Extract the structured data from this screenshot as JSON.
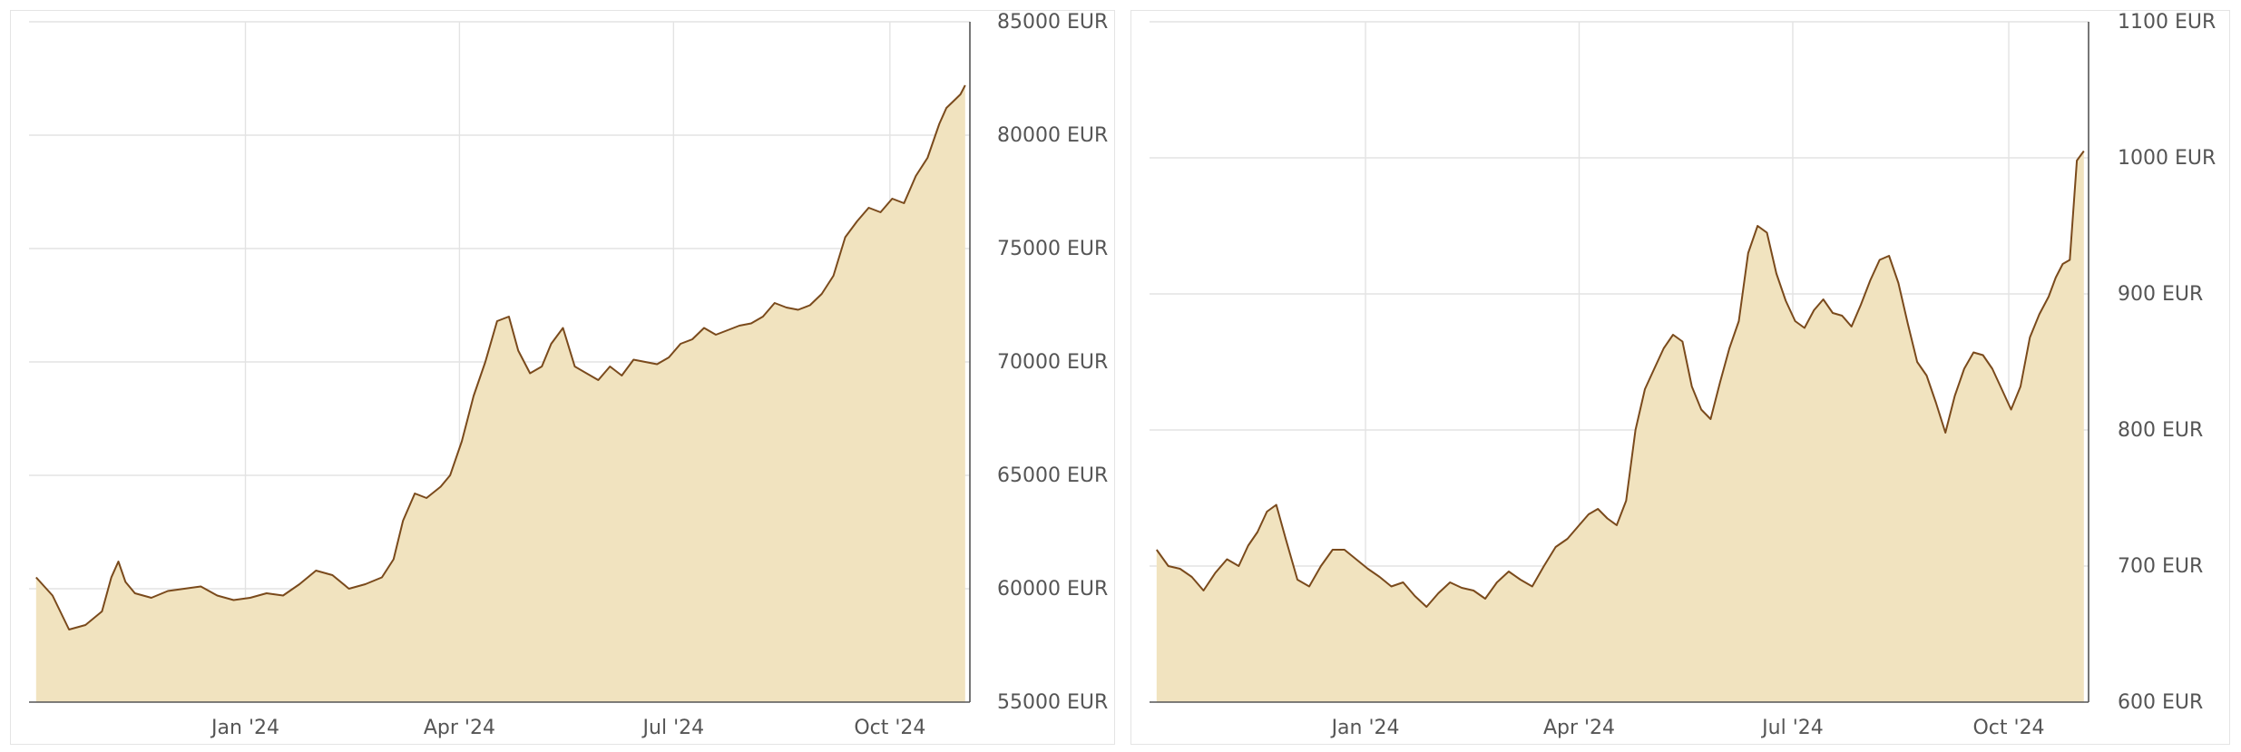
{
  "colors": {
    "line": "#7a4a1c",
    "area": "#f1e3bf",
    "grid": "#e3e3e3",
    "axis": "#555555"
  },
  "chart_data": [
    {
      "type": "area",
      "title": "",
      "xlabel": "",
      "ylabel": "",
      "unit": "EUR",
      "ylim": [
        55000,
        85000
      ],
      "yticks": [
        55000,
        60000,
        65000,
        70000,
        75000,
        80000,
        85000
      ],
      "ytick_labels": [
        "55000 EUR",
        "60000 EUR",
        "65000 EUR",
        "70000 EUR",
        "75000 EUR",
        "80000 EUR",
        "85000 EUR"
      ],
      "xlim": [
        "2023-10-01",
        "2024-11-04"
      ],
      "xticks": [
        "2024-01-01",
        "2024-04-01",
        "2024-07-01",
        "2024-10-01"
      ],
      "xtick_labels": [
        "Jan '24",
        "Apr '24",
        "Jul '24",
        "Oct '24"
      ],
      "grid": true,
      "y_axis_side": "right",
      "series": [
        {
          "x": [
            "2023-10-04",
            "2023-10-11",
            "2023-10-18",
            "2023-10-25",
            "2023-11-01",
            "2023-11-05",
            "2023-11-08",
            "2023-11-11",
            "2023-11-15",
            "2023-11-22",
            "2023-11-29",
            "2023-12-06",
            "2023-12-13",
            "2023-12-20",
            "2023-12-27",
            "2024-01-03",
            "2024-01-10",
            "2024-01-17",
            "2024-01-24",
            "2024-01-31",
            "2024-02-07",
            "2024-02-14",
            "2024-02-21",
            "2024-02-28",
            "2024-03-04",
            "2024-03-08",
            "2024-03-13",
            "2024-03-18",
            "2024-03-24",
            "2024-03-28",
            "2024-04-02",
            "2024-04-07",
            "2024-04-12",
            "2024-04-17",
            "2024-04-22",
            "2024-04-26",
            "2024-05-01",
            "2024-05-06",
            "2024-05-10",
            "2024-05-15",
            "2024-05-20",
            "2024-05-25",
            "2024-05-30",
            "2024-06-04",
            "2024-06-09",
            "2024-06-14",
            "2024-06-19",
            "2024-06-24",
            "2024-06-29",
            "2024-07-04",
            "2024-07-09",
            "2024-07-14",
            "2024-07-19",
            "2024-07-24",
            "2024-07-29",
            "2024-08-03",
            "2024-08-08",
            "2024-08-13",
            "2024-08-18",
            "2024-08-23",
            "2024-08-28",
            "2024-09-02",
            "2024-09-07",
            "2024-09-12",
            "2024-09-17",
            "2024-09-22",
            "2024-09-27",
            "2024-10-02",
            "2024-10-07",
            "2024-10-12",
            "2024-10-17",
            "2024-10-22",
            "2024-10-25",
            "2024-10-28",
            "2024-10-31",
            "2024-11-02"
          ],
          "values": [
            60500,
            59700,
            58200,
            58400,
            59000,
            60500,
            61200,
            60300,
            59800,
            59600,
            59900,
            60000,
            60100,
            59700,
            59500,
            59600,
            59800,
            59700,
            60200,
            60800,
            60600,
            60000,
            60200,
            60500,
            61300,
            63000,
            64200,
            64000,
            64500,
            65000,
            66500,
            68500,
            70000,
            71800,
            72000,
            70500,
            69500,
            69800,
            70800,
            71500,
            69800,
            69500,
            69200,
            69800,
            69400,
            70100,
            70000,
            69900,
            70200,
            70800,
            71000,
            71500,
            71200,
            71400,
            71600,
            71700,
            72000,
            72600,
            72400,
            72300,
            72500,
            73000,
            73800,
            75500,
            76200,
            76800,
            76600,
            77200,
            77000,
            78200,
            79000,
            80500,
            81200,
            81500,
            81800,
            82200
          ]
        }
      ]
    },
    {
      "type": "area",
      "title": "",
      "xlabel": "",
      "ylabel": "",
      "unit": "EUR",
      "ylim": [
        600,
        1100
      ],
      "yticks": [
        600,
        700,
        800,
        900,
        1000,
        1100
      ],
      "ytick_labels": [
        "600 EUR",
        "700 EUR",
        "800 EUR",
        "900 EUR",
        "1000 EUR",
        "1100 EUR"
      ],
      "xlim": [
        "2023-10-01",
        "2024-11-04"
      ],
      "xticks": [
        "2024-01-01",
        "2024-04-01",
        "2024-07-01",
        "2024-10-01"
      ],
      "xtick_labels": [
        "Jan '24",
        "Apr '24",
        "Jul '24",
        "Oct '24"
      ],
      "grid": true,
      "y_axis_side": "right",
      "series": [
        {
          "x": [
            "2023-10-04",
            "2023-10-09",
            "2023-10-14",
            "2023-10-19",
            "2023-10-24",
            "2023-10-29",
            "2023-11-03",
            "2023-11-08",
            "2023-11-12",
            "2023-11-16",
            "2023-11-20",
            "2023-11-24",
            "2023-11-28",
            "2023-12-03",
            "2023-12-08",
            "2023-12-13",
            "2023-12-18",
            "2023-12-23",
            "2023-12-28",
            "2024-01-02",
            "2024-01-07",
            "2024-01-12",
            "2024-01-17",
            "2024-01-22",
            "2024-01-27",
            "2024-02-01",
            "2024-02-06",
            "2024-02-11",
            "2024-02-16",
            "2024-02-21",
            "2024-02-26",
            "2024-03-02",
            "2024-03-07",
            "2024-03-12",
            "2024-03-17",
            "2024-03-22",
            "2024-03-27",
            "2024-04-01",
            "2024-04-05",
            "2024-04-09",
            "2024-04-13",
            "2024-04-17",
            "2024-04-21",
            "2024-04-25",
            "2024-04-29",
            "2024-05-03",
            "2024-05-07",
            "2024-05-11",
            "2024-05-15",
            "2024-05-19",
            "2024-05-23",
            "2024-05-27",
            "2024-05-31",
            "2024-06-04",
            "2024-06-08",
            "2024-06-12",
            "2024-06-16",
            "2024-06-20",
            "2024-06-24",
            "2024-06-28",
            "2024-07-02",
            "2024-07-06",
            "2024-07-10",
            "2024-07-14",
            "2024-07-18",
            "2024-07-22",
            "2024-07-26",
            "2024-07-30",
            "2024-08-03",
            "2024-08-07",
            "2024-08-11",
            "2024-08-15",
            "2024-08-19",
            "2024-08-23",
            "2024-08-27",
            "2024-08-31",
            "2024-09-04",
            "2024-09-08",
            "2024-09-12",
            "2024-09-16",
            "2024-09-20",
            "2024-09-24",
            "2024-09-28",
            "2024-10-02",
            "2024-10-06",
            "2024-10-10",
            "2024-10-14",
            "2024-10-18",
            "2024-10-21",
            "2024-10-24",
            "2024-10-27",
            "2024-10-30",
            "2024-11-02"
          ],
          "values": [
            712,
            700,
            698,
            692,
            682,
            695,
            705,
            700,
            715,
            725,
            740,
            745,
            720,
            690,
            685,
            700,
            712,
            712,
            705,
            698,
            692,
            685,
            688,
            678,
            670,
            680,
            688,
            684,
            682,
            676,
            688,
            696,
            690,
            685,
            700,
            714,
            720,
            730,
            738,
            742,
            735,
            730,
            748,
            800,
            830,
            845,
            860,
            870,
            865,
            832,
            815,
            808,
            835,
            860,
            880,
            930,
            950,
            945,
            915,
            895,
            880,
            875,
            888,
            896,
            886,
            884,
            876,
            892,
            910,
            925,
            928,
            908,
            878,
            850,
            840,
            820,
            798,
            825,
            845,
            857,
            855,
            845,
            830,
            815,
            832,
            868,
            885,
            898,
            912,
            922,
            925,
            998,
            1005
          ]
        }
      ]
    }
  ]
}
